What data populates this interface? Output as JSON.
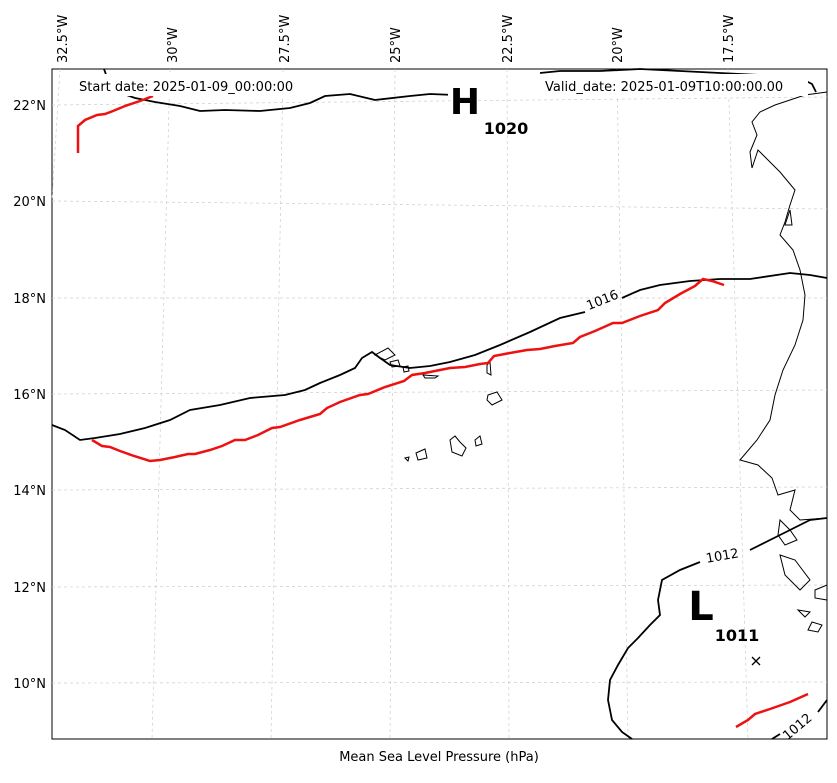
{
  "annotations": {
    "start": "Start date: 2025-01-09_00:00:00",
    "valid": "Valid_date: 2025-01-09T10:00:00.00",
    "bottom_label": "Mean Sea Level Pressure (hPa)"
  },
  "lon_ticks": [
    "32.5°W",
    "30°W",
    "27.5°W",
    "25°W",
    "22.5°W",
    "20°W",
    "17.5°W"
  ],
  "lat_ticks": [
    "22°N",
    "20°N",
    "18°N",
    "16°N",
    "14°N",
    "12°N",
    "10°N"
  ],
  "systems": {
    "high": {
      "letter": "H",
      "value": "1020"
    },
    "low": {
      "letter": "L",
      "value": "1011"
    }
  },
  "isobar_labels": [
    "1016",
    "1012",
    "1012"
  ],
  "colors": {
    "isobar": "#000000",
    "track": "#ee1111",
    "grid": "#cccccc"
  },
  "chart_data": {
    "type": "map",
    "isobars_hPa": [
      1020,
      1016,
      1012
    ],
    "high_center_hPa": 1020,
    "low_center_hPa": 1011
  }
}
